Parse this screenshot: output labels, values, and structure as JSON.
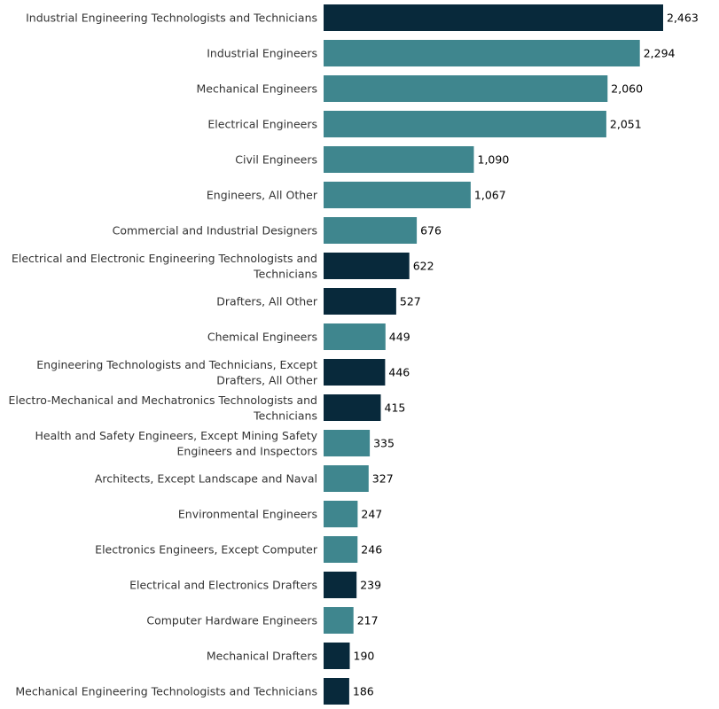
{
  "chart_data": {
    "type": "bar",
    "orientation": "horizontal",
    "title": "",
    "xlabel": "",
    "ylabel": "",
    "xlim": [
      0,
      2463
    ],
    "grid": false,
    "legend": "none",
    "colors": {
      "dark": "#08293b",
      "teal": "#3f868e"
    },
    "bars": [
      {
        "lines": [
          "Industrial Engineering Technologists and Technicians"
        ],
        "value": 2463,
        "value_label": "2,463",
        "color": "dark"
      },
      {
        "lines": [
          "Industrial Engineers"
        ],
        "value": 2294,
        "value_label": "2,294",
        "color": "teal"
      },
      {
        "lines": [
          "Mechanical Engineers"
        ],
        "value": 2060,
        "value_label": "2,060",
        "color": "teal"
      },
      {
        "lines": [
          "Electrical Engineers"
        ],
        "value": 2051,
        "value_label": "2,051",
        "color": "teal"
      },
      {
        "lines": [
          "Civil Engineers"
        ],
        "value": 1090,
        "value_label": "1,090",
        "color": "teal"
      },
      {
        "lines": [
          "Engineers, All Other"
        ],
        "value": 1067,
        "value_label": "1,067",
        "color": "teal"
      },
      {
        "lines": [
          "Commercial and Industrial Designers"
        ],
        "value": 676,
        "value_label": "676",
        "color": "teal"
      },
      {
        "lines": [
          "Electrical and Electronic Engineering Technologists and",
          "Technicians"
        ],
        "value": 622,
        "value_label": "622",
        "color": "dark"
      },
      {
        "lines": [
          "Drafters, All Other"
        ],
        "value": 527,
        "value_label": "527",
        "color": "dark"
      },
      {
        "lines": [
          "Chemical Engineers"
        ],
        "value": 449,
        "value_label": "449",
        "color": "teal"
      },
      {
        "lines": [
          "Engineering Technologists and Technicians, Except",
          "Drafters, All Other"
        ],
        "value": 446,
        "value_label": "446",
        "color": "dark"
      },
      {
        "lines": [
          "Electro-Mechanical and Mechatronics Technologists and",
          "Technicians"
        ],
        "value": 415,
        "value_label": "415",
        "color": "dark"
      },
      {
        "lines": [
          "Health and Safety Engineers, Except Mining Safety",
          "Engineers and Inspectors"
        ],
        "value": 335,
        "value_label": "335",
        "color": "teal"
      },
      {
        "lines": [
          "Architects, Except Landscape and Naval"
        ],
        "value": 327,
        "value_label": "327",
        "color": "teal"
      },
      {
        "lines": [
          "Environmental Engineers"
        ],
        "value": 247,
        "value_label": "247",
        "color": "teal"
      },
      {
        "lines": [
          "Electronics Engineers, Except Computer"
        ],
        "value": 246,
        "value_label": "246",
        "color": "teal"
      },
      {
        "lines": [
          "Electrical and Electronics Drafters"
        ],
        "value": 239,
        "value_label": "239",
        "color": "dark"
      },
      {
        "lines": [
          "Computer Hardware Engineers"
        ],
        "value": 217,
        "value_label": "217",
        "color": "teal"
      },
      {
        "lines": [
          "Mechanical Drafters"
        ],
        "value": 190,
        "value_label": "190",
        "color": "dark"
      },
      {
        "lines": [
          "Mechanical Engineering Technologists and Technicians"
        ],
        "value": 186,
        "value_label": "186",
        "color": "dark"
      }
    ]
  }
}
